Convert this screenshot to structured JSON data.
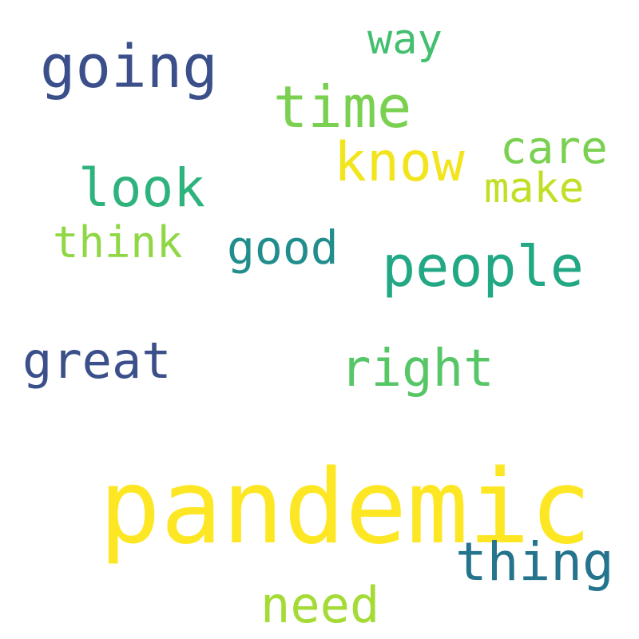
{
  "words": [
    {
      "id": "pandemic",
      "text": "pandemic",
      "color": "#fde725"
    },
    {
      "id": "people",
      "text": "people",
      "color": "#22a884"
    },
    {
      "id": "going",
      "text": "going",
      "color": "#3b4f8a"
    },
    {
      "id": "time",
      "text": "time",
      "color": "#7ad151"
    },
    {
      "id": "know",
      "text": "know",
      "color": "#f2e51d"
    },
    {
      "id": "look",
      "text": "look",
      "color": "#2eb37c"
    },
    {
      "id": "thing",
      "text": "thing",
      "color": "#25748e"
    },
    {
      "id": "right",
      "text": "right",
      "color": "#56c667"
    },
    {
      "id": "great",
      "text": "great",
      "color": "#3b4f8a"
    },
    {
      "id": "need",
      "text": "need",
      "color": "#a5db36"
    },
    {
      "id": "good",
      "text": "good",
      "color": "#218e8d"
    },
    {
      "id": "care",
      "text": "care",
      "color": "#7ad151"
    },
    {
      "id": "think",
      "text": "think",
      "color": "#8fd744"
    },
    {
      "id": "make",
      "text": "make",
      "color": "#c0df25"
    },
    {
      "id": "way",
      "text": "way",
      "color": "#44bf70"
    }
  ]
}
